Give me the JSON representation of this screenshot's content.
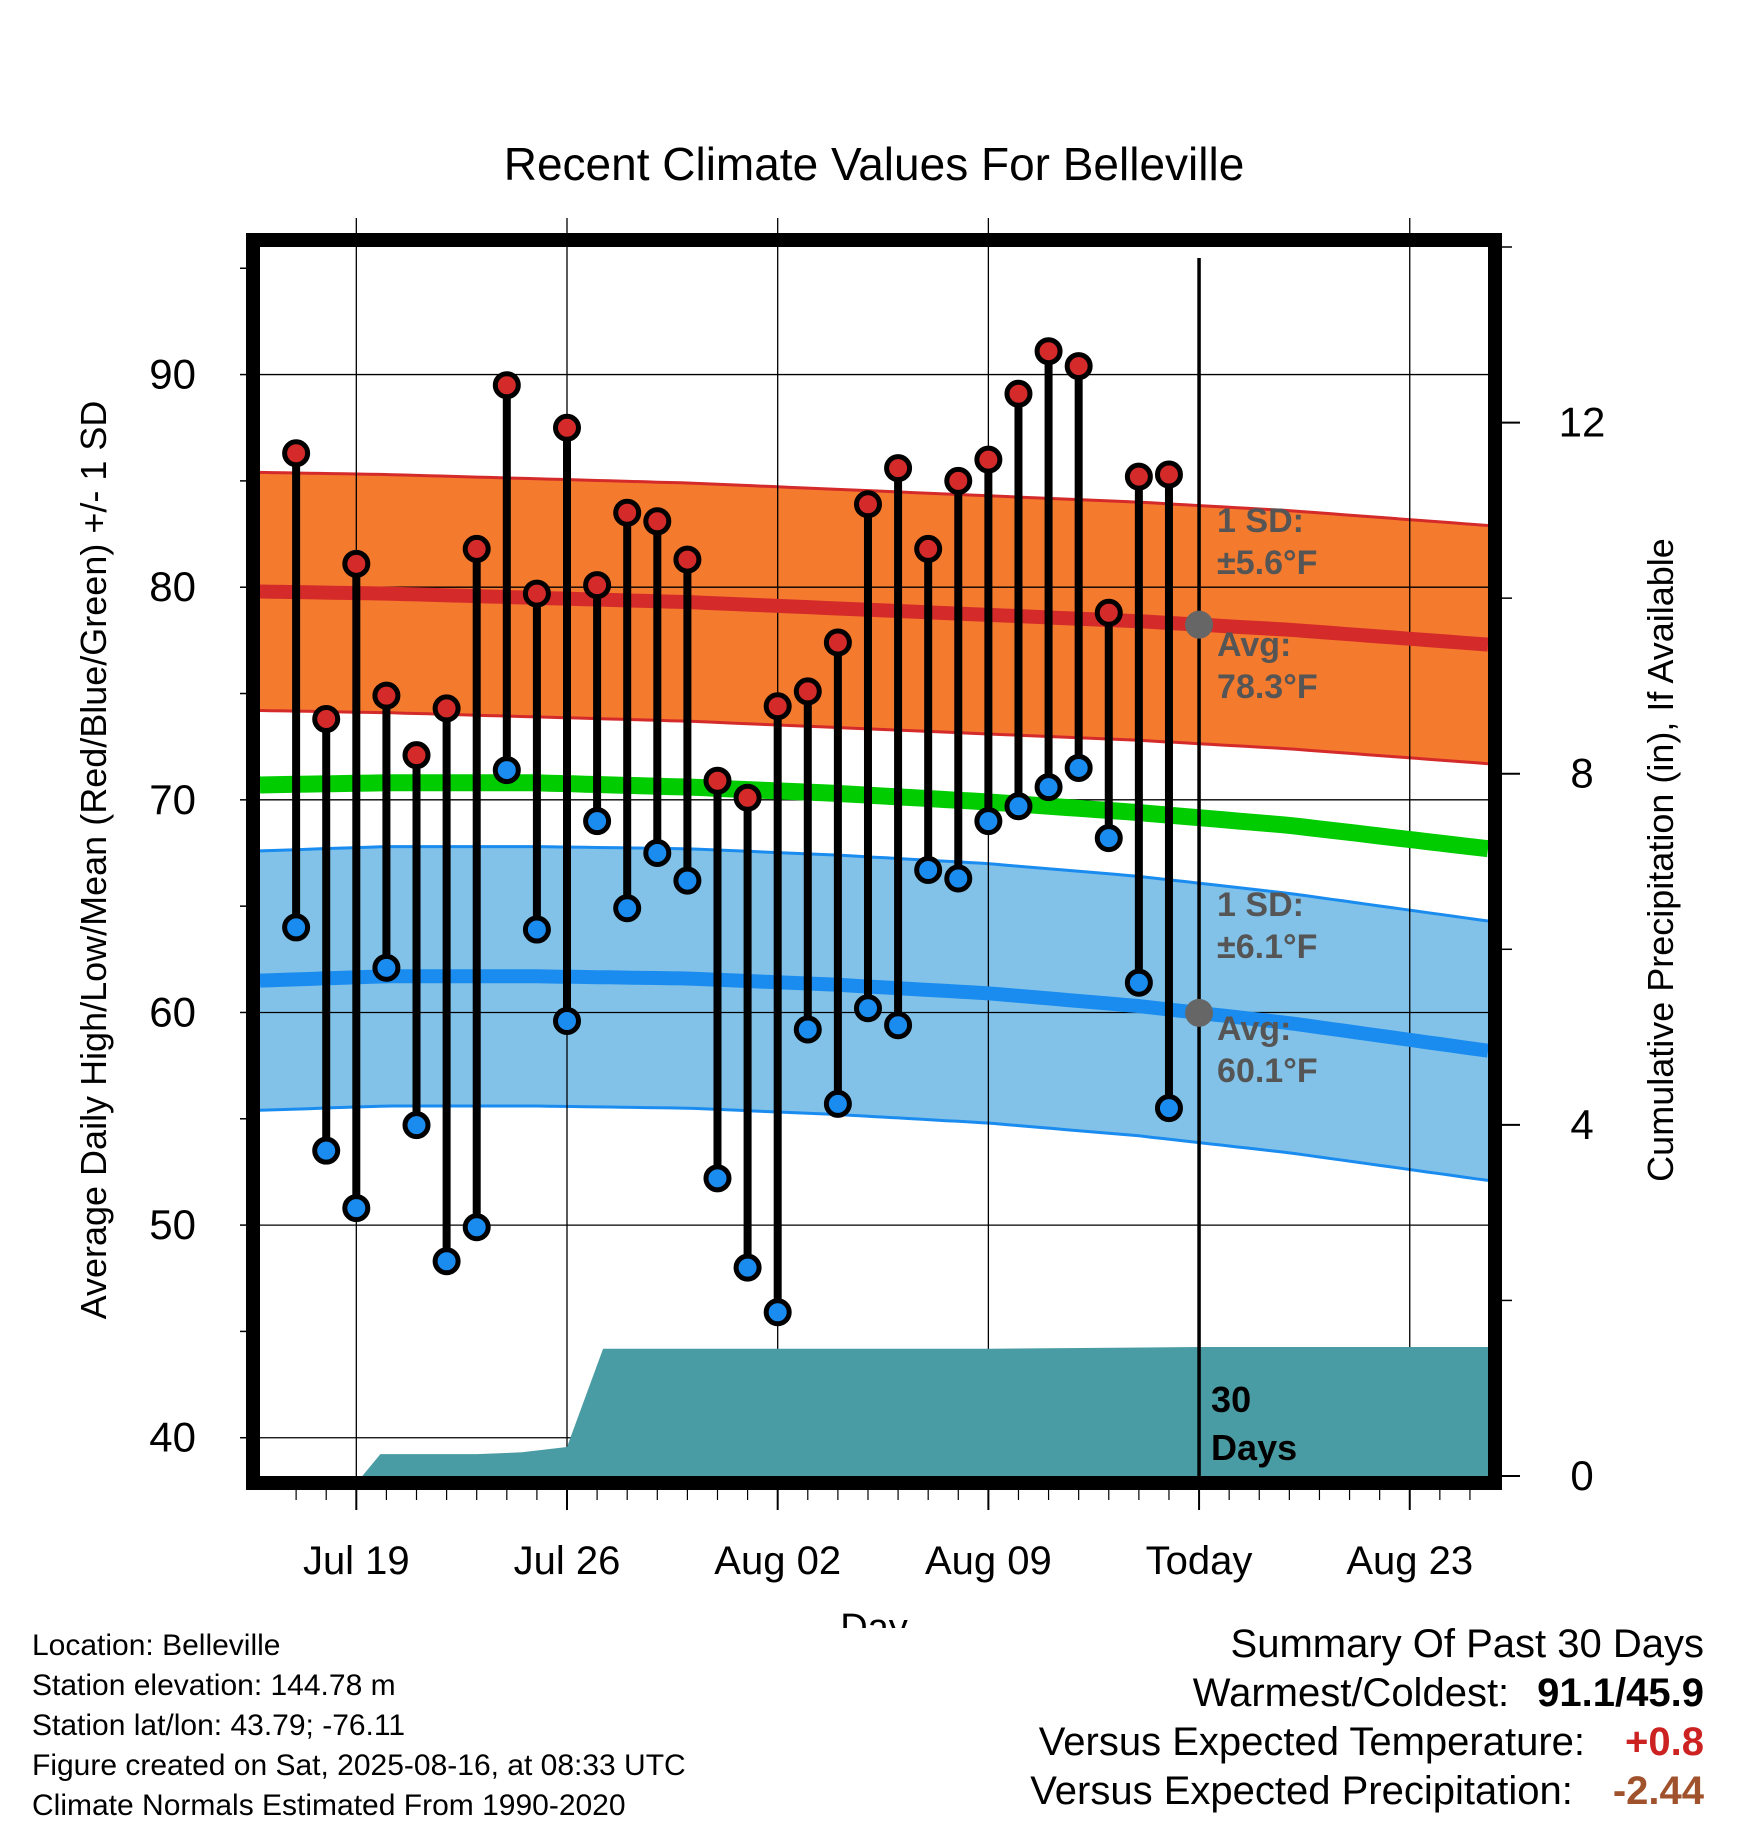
{
  "chart_data": {
    "type": "line",
    "title": "Recent Climate Values For Belleville",
    "xlabel": "Day",
    "ylabel_left": "Average Daily High/Low/Mean (Red/Blue/Green) +/- 1 SD",
    "ylabel_right": "Cumulative Precipitation (in), If Available",
    "y_range": [
      38.2,
      96
    ],
    "y_ticks": [
      40,
      50,
      60,
      70,
      80,
      90
    ],
    "precip_range": [
      0,
      14.0
    ],
    "precip_ticks": [
      0,
      4,
      8,
      12
    ],
    "x_ticks": [
      {
        "day": 19,
        "label": "Jul 19"
      },
      {
        "day": 26,
        "label": "Jul 26"
      },
      {
        "day": 33,
        "label": "Aug 02"
      },
      {
        "day": 40,
        "label": "Aug 09"
      },
      {
        "day": 47,
        "label": "Today"
      },
      {
        "day": 54,
        "label": "Aug 23"
      }
    ],
    "x_range": [
      15.8,
      56.6
    ],
    "obs_days": [
      17,
      18,
      19,
      20,
      21,
      22,
      23,
      24,
      25,
      26,
      27,
      28,
      29,
      30,
      31,
      32,
      33,
      34,
      35,
      36,
      37,
      38,
      39,
      40,
      41,
      42,
      43,
      44,
      45,
      46
    ],
    "daily_high": [
      86.3,
      73.8,
      81.1,
      74.9,
      72.1,
      74.3,
      81.8,
      89.5,
      79.7,
      87.5,
      80.1,
      83.5,
      83.1,
      81.3,
      70.9,
      70.1,
      74.4,
      75.1,
      77.4,
      83.9,
      85.6,
      81.8,
      85.0,
      86.0,
      89.1,
      91.1,
      90.4,
      78.8,
      85.2,
      85.3
    ],
    "daily_low": [
      64.0,
      53.5,
      50.8,
      62.1,
      54.7,
      48.3,
      49.9,
      71.4,
      63.9,
      59.6,
      69.0,
      64.9,
      67.5,
      66.2,
      52.2,
      48.0,
      45.9,
      59.2,
      55.7,
      60.2,
      59.4,
      66.7,
      66.3,
      69.0,
      69.7,
      70.6,
      71.5,
      68.2,
      61.4,
      55.5
    ],
    "normal_days": [
      15.8,
      20,
      25,
      30,
      35,
      40,
      45,
      50,
      56.6
    ],
    "normal_high": [
      79.8,
      79.7,
      79.5,
      79.3,
      79.0,
      78.7,
      78.4,
      78.0,
      77.3
    ],
    "normal_low": [
      61.5,
      61.7,
      61.7,
      61.6,
      61.3,
      60.9,
      60.3,
      59.5,
      58.2
    ],
    "normal_mean": [
      70.7,
      70.8,
      70.8,
      70.6,
      70.3,
      69.9,
      69.4,
      68.8,
      67.7
    ],
    "high_sd": 5.6,
    "low_sd": 6.1,
    "precip_days": [
      15.8,
      19.2,
      19.8,
      23,
      24.5,
      26,
      27.2,
      40,
      47,
      56.6
    ],
    "precip_cum": [
      0,
      0,
      0.25,
      0.25,
      0.27,
      0.33,
      1.45,
      1.45,
      1.47,
      1.47
    ],
    "today_marker": {
      "day": 47,
      "label_line1": "30",
      "label_line2": "Days"
    },
    "high_band_label": {
      "sd_title": "1 SD:",
      "sd_value": "±5.6°F",
      "avg_title": "Avg:",
      "avg_value": "78.3°F"
    },
    "low_band_label": {
      "sd_title": "1 SD:",
      "sd_value": "±6.1°F",
      "avg_title": "Avg:",
      "avg_value": "60.1°F"
    },
    "colors": {
      "high_band": "#f47a2e",
      "high_line": "#d42a2a",
      "low_band": "#82c2e8",
      "low_line": "#1a8cf0",
      "mean_line": "#00cc00",
      "precip_fill": "#4a9ca4",
      "high_dot": "#d42a2a",
      "low_dot": "#1a8cf0",
      "label_gray": "#555555"
    },
    "grid": true
  },
  "info": {
    "location": "Location: Belleville",
    "elevation": "Station elevation: 144.78 m",
    "latlon": "Station lat/lon: 43.79; -76.11",
    "created": "Figure created on Sat, 2025-08-16, at 08:33 UTC",
    "normals": "Climate Normals Estimated From 1990-2020"
  },
  "summary": {
    "title": "Summary Of Past 30 Days",
    "warm_cold_label": "Warmest/Coldest:",
    "warm_cold_value": "91.1/45.9",
    "temp_label": "Versus Expected Temperature:",
    "temp_value": "+0.8",
    "temp_color": "#cc2222",
    "precip_label": "Versus Expected Precipitation:",
    "precip_value": "-2.44",
    "precip_color": "#a0522d"
  }
}
